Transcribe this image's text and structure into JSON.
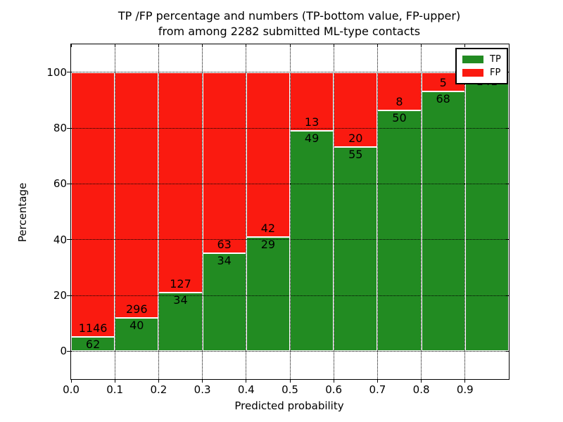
{
  "figure": {
    "title_line1": "TP /FP percentage and numbers (TP-bottom value, FP-upper)",
    "title_line2": "from among 2282 submitted ML-type contacts"
  },
  "axes": {
    "xlabel": "Predicted probability",
    "ylabel": "Percentage",
    "x_tick_labels": [
      "0.0",
      "0.1",
      "0.2",
      "0.3",
      "0.4",
      "0.5",
      "0.6",
      "0.7",
      "0.8",
      "0.9"
    ],
    "x_tick_values": [
      0.0,
      0.1,
      0.2,
      0.3,
      0.4,
      0.5,
      0.6,
      0.7,
      0.8,
      0.9
    ],
    "y_tick_labels": [
      "0",
      "20",
      "40",
      "60",
      "80",
      "100"
    ],
    "y_tick_values": [
      0,
      20,
      40,
      60,
      80,
      100
    ]
  },
  "legend": {
    "items": [
      {
        "label": "TP",
        "color": "#228B22"
      },
      {
        "label": "FP",
        "color": "#FA1A10"
      }
    ]
  },
  "chart_data": {
    "type": "bar",
    "stacked": true,
    "title": "TP /FP percentage and numbers (TP-bottom value, FP-upper) from among 2282 submitted ML-type contacts",
    "xlabel": "Predicted probability",
    "ylabel": "Percentage",
    "xlim": [
      0.0,
      1.0
    ],
    "ylim": [
      -10,
      110
    ],
    "grid": true,
    "legend_position": "upper right",
    "total_submitted": 2282,
    "bin_width": 0.1,
    "series_colors": {
      "TP": "#228B22",
      "FP": "#FA1A10"
    },
    "bins": [
      {
        "x0": 0.0,
        "x1": 0.1,
        "tp": 62,
        "fp": 1146,
        "tp_pct": 5.1,
        "tp_label": "62",
        "fp_label": "1146"
      },
      {
        "x0": 0.1,
        "x1": 0.2,
        "tp": 40,
        "fp": 296,
        "tp_pct": 11.9,
        "tp_label": "40",
        "fp_label": "296"
      },
      {
        "x0": 0.2,
        "x1": 0.3,
        "tp": 34,
        "fp": 127,
        "tp_pct": 21.1,
        "tp_label": "34",
        "fp_label": "127"
      },
      {
        "x0": 0.3,
        "x1": 0.4,
        "tp": 34,
        "fp": 63,
        "tp_pct": 35.1,
        "tp_label": "34",
        "fp_label": "63"
      },
      {
        "x0": 0.4,
        "x1": 0.5,
        "tp": 29,
        "fp": 42,
        "tp_pct": 40.8,
        "tp_label": "29",
        "fp_label": "42"
      },
      {
        "x0": 0.5,
        "x1": 0.6,
        "tp": 49,
        "fp": 13,
        "tp_pct": 79.0,
        "tp_label": "49",
        "fp_label": "13"
      },
      {
        "x0": 0.6,
        "x1": 0.7,
        "tp": 55,
        "fp": 20,
        "tp_pct": 73.3,
        "tp_label": "55",
        "fp_label": "20"
      },
      {
        "x0": 0.7,
        "x1": 0.8,
        "tp": 50,
        "fp": 8,
        "tp_pct": 86.2,
        "tp_label": "50",
        "fp_label": "8"
      },
      {
        "x0": 0.8,
        "x1": 0.9,
        "tp": 68,
        "fp": 5,
        "tp_pct": 93.2,
        "tp_label": "68",
        "fp_label": "5"
      },
      {
        "x0": 0.9,
        "x1": 1.0,
        "tp": 141,
        "fp": null,
        "tp_pct": 99.3,
        "tp_label": "141",
        "fp_label": ""
      }
    ]
  }
}
